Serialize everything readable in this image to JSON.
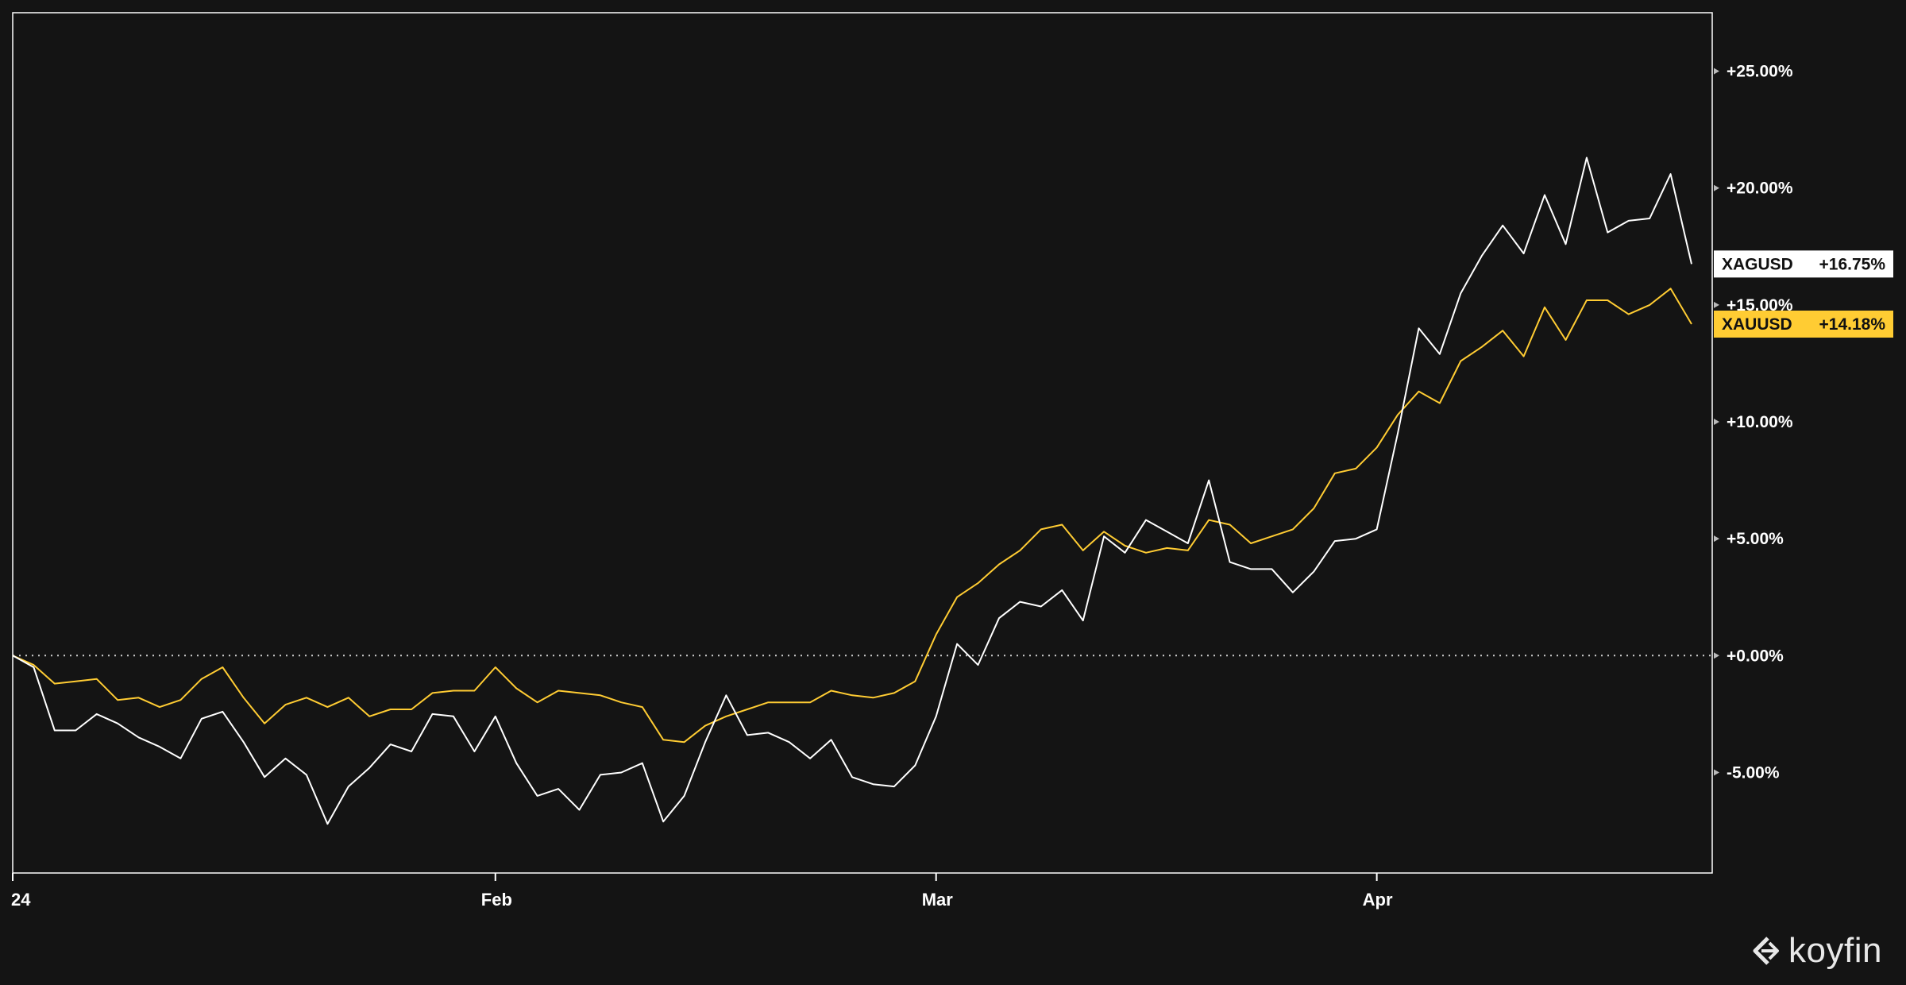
{
  "chart_data": {
    "type": "line",
    "x_axis": {
      "ticks": [
        "24",
        "Feb",
        "Mar",
        "Apr"
      ]
    },
    "y_axis": {
      "ticks": [
        "+25.00%",
        "+20.00%",
        "+15.00%",
        "+10.00%",
        "+5.00%",
        "+0.00%",
        "-5.00%"
      ],
      "tick_values": [
        25,
        20,
        15,
        10,
        5,
        0,
        -5
      ],
      "ylim": [
        -9.3,
        27.5
      ],
      "unit": "%",
      "zero_line": "dotted"
    },
    "grid": false,
    "series": [
      {
        "name": "XAGUSD",
        "label": "+16.75%",
        "color": "#ffffff",
        "values": [
          0,
          -0.5,
          -3.2,
          -3.2,
          -2.5,
          -2.9,
          -3.5,
          -3.9,
          -4.4,
          -2.7,
          -2.4,
          -3.7,
          -5.2,
          -4.4,
          -5.1,
          -7.2,
          -5.6,
          -4.8,
          -3.8,
          -4.1,
          -2.5,
          -2.6,
          -4.1,
          -2.6,
          -4.6,
          -6.0,
          -5.7,
          -6.6,
          -5.1,
          -5.0,
          -4.6,
          -7.1,
          -6.0,
          -3.7,
          -1.7,
          -3.4,
          -3.3,
          -3.7,
          -4.4,
          -3.6,
          -5.2,
          -5.5,
          -5.6,
          -4.7,
          -2.6,
          0.5,
          -0.4,
          1.6,
          2.3,
          2.1,
          2.8,
          1.5,
          5.1,
          4.4,
          5.8,
          5.3,
          4.8,
          7.5,
          4.0,
          3.7,
          3.7,
          2.7,
          3.6,
          4.9,
          5.0,
          5.4,
          9.5,
          14.0,
          12.9,
          15.5,
          17.1,
          18.4,
          17.2,
          19.7,
          17.6,
          21.3,
          18.1,
          18.6,
          18.7,
          20.6,
          16.75
        ]
      },
      {
        "name": "XAUUSD",
        "label": "+14.18%",
        "color": "#ffcc33",
        "values": [
          0,
          -0.4,
          -1.2,
          -1.1,
          -1.0,
          -1.9,
          -1.8,
          -2.2,
          -1.9,
          -1.0,
          -0.5,
          -1.8,
          -2.9,
          -2.1,
          -1.8,
          -2.2,
          -1.8,
          -2.6,
          -2.3,
          -2.3,
          -1.6,
          -1.5,
          -1.5,
          -0.5,
          -1.4,
          -2.0,
          -1.5,
          -1.6,
          -1.7,
          -2.0,
          -2.2,
          -3.6,
          -3.7,
          -3.0,
          -2.6,
          -2.3,
          -2.0,
          -2.0,
          -2.0,
          -1.5,
          -1.7,
          -1.8,
          -1.6,
          -1.1,
          0.9,
          2.5,
          3.1,
          3.9,
          4.5,
          5.4,
          5.6,
          4.5,
          5.3,
          4.7,
          4.4,
          4.6,
          4.5,
          5.8,
          5.6,
          4.8,
          5.1,
          5.4,
          6.3,
          7.8,
          8.0,
          8.9,
          10.3,
          11.3,
          10.8,
          12.6,
          13.2,
          13.9,
          12.8,
          14.9,
          13.5,
          15.2,
          15.2,
          14.6,
          15.0,
          15.7,
          14.18
        ]
      }
    ],
    "legend": "right-edge value tags"
  },
  "branding": {
    "logo_text": "koyfin"
  }
}
